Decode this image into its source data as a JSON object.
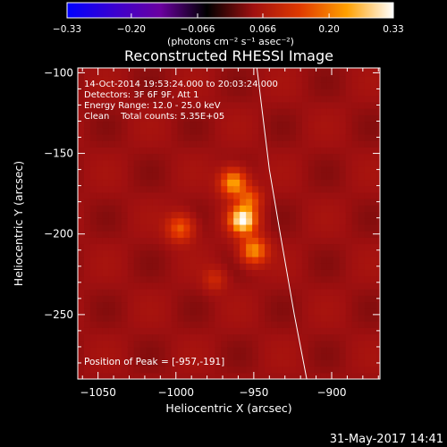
{
  "chart_data": {
    "type": "heatmap",
    "title": "Reconstructed RHESSI Image",
    "xlabel": "Heliocentric X (arcsec)",
    "ylabel": "Heliocentric Y (arcsec)",
    "xlim": [
      -1063,
      -869
    ],
    "ylim": [
      -290,
      -97
    ],
    "xticks": [
      -1050,
      -1000,
      -950,
      -900
    ],
    "xtick_labels": [
      "−1050",
      "−1000",
      "−950",
      "−900"
    ],
    "yticks": [
      -100,
      -150,
      -200,
      -250
    ],
    "ytick_labels": [
      "−100",
      "−150",
      "−200",
      "−250"
    ],
    "colorbar": {
      "range": [
        -0.33,
        0.33
      ],
      "ticks": [
        -0.33,
        -0.2,
        -0.066,
        0.066,
        0.2,
        0.33
      ],
      "tick_labels": [
        "−0.33",
        "−0.20",
        "−0.066",
        "0.066",
        "0.20",
        "0.33"
      ],
      "units_label": "(photons cm⁻² s⁻¹ asec⁻²)",
      "colormap_stops": [
        "#0000ff",
        "#3a00d0",
        "#6a00a0",
        "#000000",
        "#a01010",
        "#e03a00",
        "#ffa000",
        "#ffffff"
      ]
    },
    "background_level": 0.08,
    "sources": [
      {
        "x": -957,
        "y": -191,
        "peak": 0.33,
        "sigma": 6
      },
      {
        "x": -963,
        "y": -168,
        "peak": 0.26,
        "sigma": 6
      },
      {
        "x": -950,
        "y": -210,
        "peak": 0.24,
        "sigma": 6
      },
      {
        "x": -997,
        "y": -196,
        "peak": 0.2,
        "sigma": 6
      },
      {
        "x": -952,
        "y": -178,
        "peak": 0.18,
        "sigma": 5
      },
      {
        "x": -975,
        "y": -228,
        "peak": 0.14,
        "sigma": 5
      }
    ],
    "limb_curve": [
      [
        -948,
        -97
      ],
      [
        -940,
        -160
      ],
      [
        -933,
        -200
      ],
      [
        -924,
        -250
      ],
      [
        -916,
        -290
      ]
    ],
    "info_lines": [
      "14-Oct-2014 19:53:24.000 to 20:03:24.000",
      "Detectors: 3F 6F 9F, Att 1",
      "Energy Range: 12.0 - 25.0 keV",
      "Clean    Total counts: 5.35E+05"
    ],
    "peak_label": "Position of Peak = [-957,-191]"
  },
  "footer": {
    "timestamp": "31-May-2017 14:41"
  }
}
